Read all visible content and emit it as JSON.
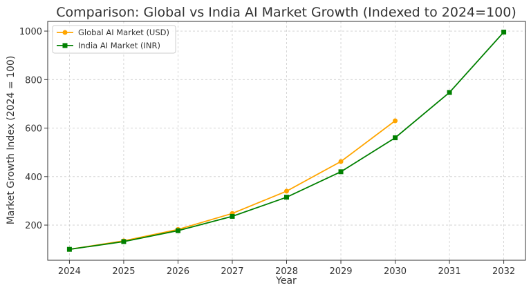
{
  "chart_data": {
    "type": "line",
    "title": "Comparison: Global vs India AI Market Growth (Indexed to 2024=100)",
    "xlabel": "Year",
    "ylabel": "Market Growth Index (2024 = 100)",
    "x": [
      2024,
      2025,
      2026,
      2027,
      2028,
      2029,
      2030,
      2031,
      2032
    ],
    "xlim": [
      2023.6,
      2032.4
    ],
    "ylim": [
      55,
      1040
    ],
    "yticks": [
      200,
      400,
      600,
      800,
      1000
    ],
    "grid": true,
    "legend_position": "top-left",
    "series": [
      {
        "name": "Global AI Market (USD)",
        "color": "#ffa500",
        "marker": "circle",
        "x": [
          2024,
          2025,
          2026,
          2027,
          2028,
          2029,
          2030
        ],
        "values": [
          100,
          135,
          182,
          248,
          340,
          462,
          630
        ]
      },
      {
        "name": "India AI Market (INR)",
        "color": "#008000",
        "marker": "square",
        "x": [
          2024,
          2025,
          2026,
          2027,
          2028,
          2029,
          2030,
          2031,
          2032
        ],
        "values": [
          100,
          132,
          177,
          236,
          315,
          420,
          560,
          747,
          996
        ]
      }
    ]
  }
}
